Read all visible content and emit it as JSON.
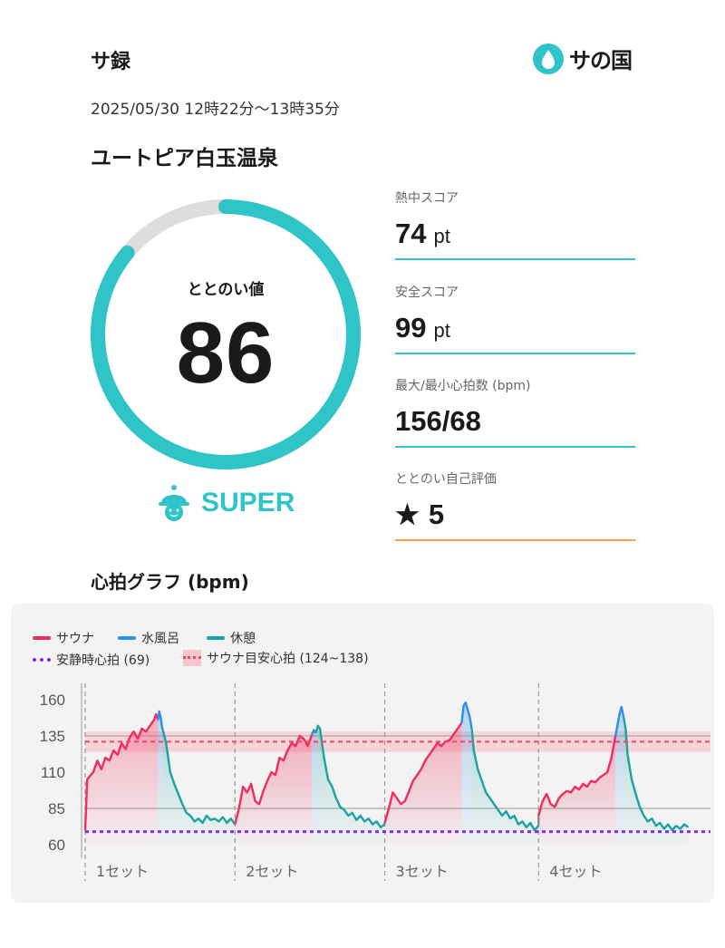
{
  "header": {
    "title": "サ録",
    "logo_text": "サの国"
  },
  "session": {
    "datetime": "2025/05/30 12時22分〜13時35分",
    "facility": "ユートピア白玉温泉"
  },
  "totonoi": {
    "label": "ととのい値",
    "value": "86",
    "progress": 0.86,
    "grade": "SUPER"
  },
  "stats": [
    {
      "label": "熱中スコア",
      "value": "74",
      "unit": "pt"
    },
    {
      "label": "安全スコア",
      "value": "99",
      "unit": "pt"
    },
    {
      "label": "最大/最小心拍数 (bpm)",
      "value": "156/68",
      "unit": ""
    },
    {
      "label": "ととのい自己評価",
      "value": "5",
      "unit": ""
    }
  ],
  "graph": {
    "title": "心拍グラフ (bpm)",
    "legend": {
      "sauna": "サウナ",
      "cold": "水風呂",
      "rest": "休憩",
      "resting_hr": "安静時心拍 (69)",
      "target": "サウナ目安心拍 (124~138)"
    }
  },
  "colors": {
    "sauna": "#ef2d5e",
    "cold": "#2b8ff0",
    "rest": "#1aa3a3",
    "transition": "#888888",
    "resting": "#8a2be2",
    "accent": "#2ec4c8",
    "self_eval": "#f4a04b"
  },
  "chart_data": {
    "type": "line",
    "ylim": [
      60,
      165
    ],
    "yticks": [
      160,
      135,
      110,
      85,
      60
    ],
    "reference_lines": {
      "resting_hr": 69,
      "target_low": 124,
      "target_high": 138,
      "target_line": 131,
      "horizontal_grid": [
        135,
        85
      ]
    },
    "sets": [
      {
        "label": "1セット",
        "sauna": [
          [
            0,
            70
          ],
          [
            0.5,
            105
          ],
          [
            2,
            110
          ],
          [
            3,
            118
          ],
          [
            4,
            112
          ],
          [
            5,
            120
          ],
          [
            6,
            118
          ],
          [
            7,
            125
          ],
          [
            8,
            122
          ],
          [
            9,
            130
          ],
          [
            10,
            126
          ],
          [
            11,
            134
          ],
          [
            12,
            138
          ],
          [
            13,
            133
          ],
          [
            14,
            140
          ],
          [
            15,
            138
          ],
          [
            16,
            142
          ],
          [
            17,
            146
          ],
          [
            17.5,
            150
          ],
          [
            18,
            146
          ]
        ],
        "cold": [
          [
            18,
            146
          ],
          [
            18.3,
            152
          ],
          [
            18.7,
            147
          ],
          [
            19,
            141
          ]
        ],
        "rest": [
          [
            19,
            141
          ],
          [
            20,
            130
          ],
          [
            21,
            110
          ],
          [
            22,
            102
          ],
          [
            23,
            95
          ],
          [
            24,
            88
          ],
          [
            25,
            82
          ],
          [
            26,
            80
          ],
          [
            27,
            76
          ],
          [
            28,
            78
          ],
          [
            29,
            75
          ],
          [
            30,
            80
          ],
          [
            31,
            77
          ],
          [
            32,
            78
          ],
          [
            33,
            76
          ],
          [
            34,
            79
          ],
          [
            35,
            75
          ],
          [
            36,
            78
          ],
          [
            37,
            74
          ]
        ]
      },
      {
        "label": "2セット",
        "sauna": [
          [
            37,
            74
          ],
          [
            38,
            85
          ],
          [
            39,
            100
          ],
          [
            40,
            96
          ],
          [
            41,
            102
          ],
          [
            42,
            90
          ],
          [
            43,
            88
          ],
          [
            44,
            97
          ],
          [
            45,
            104
          ],
          [
            46,
            110
          ],
          [
            47,
            108
          ],
          [
            48,
            120
          ],
          [
            49,
            118
          ],
          [
            50,
            125
          ],
          [
            51,
            130
          ],
          [
            52,
            128
          ],
          [
            53,
            135
          ],
          [
            54,
            133
          ],
          [
            55,
            128
          ],
          [
            56,
            136
          ]
        ],
        "cold": [
          [
            56,
            136
          ],
          [
            56.5,
            139
          ],
          [
            57,
            137
          ]
        ],
        "rest": [
          [
            57,
            137
          ],
          [
            57.5,
            142
          ],
          [
            58,
            140
          ],
          [
            59,
            120
          ],
          [
            60,
            105
          ],
          [
            61,
            100
          ],
          [
            62,
            92
          ],
          [
            63,
            86
          ],
          [
            64,
            84
          ],
          [
            65,
            80
          ],
          [
            66,
            82
          ],
          [
            67,
            77
          ],
          [
            68,
            80
          ],
          [
            69,
            76
          ],
          [
            70,
            78
          ],
          [
            71,
            74
          ],
          [
            72,
            76
          ],
          [
            73,
            72
          ],
          [
            74,
            74
          ]
        ]
      },
      {
        "label": "3セット",
        "sauna": [
          [
            74,
            75
          ],
          [
            75,
            85
          ],
          [
            76,
            96
          ],
          [
            77,
            92
          ],
          [
            78,
            88
          ],
          [
            79,
            90
          ],
          [
            80,
            97
          ],
          [
            81,
            104
          ],
          [
            82,
            108
          ],
          [
            83,
            112
          ],
          [
            84,
            118
          ],
          [
            85,
            122
          ],
          [
            86,
            126
          ],
          [
            87,
            130
          ],
          [
            88,
            128
          ],
          [
            89,
            131
          ],
          [
            90,
            132
          ],
          [
            91,
            136
          ],
          [
            92,
            140
          ],
          [
            93,
            144
          ]
        ],
        "cold": [
          [
            93,
            144
          ],
          [
            93.5,
            156
          ],
          [
            94,
            158
          ],
          [
            95,
            148
          ],
          [
            95.5,
            140
          ]
        ],
        "rest": [
          [
            95.5,
            140
          ],
          [
            96,
            125
          ],
          [
            97,
            112
          ],
          [
            98,
            104
          ],
          [
            99,
            96
          ],
          [
            100,
            92
          ],
          [
            101,
            88
          ],
          [
            102,
            84
          ],
          [
            103,
            80
          ],
          [
            104,
            83
          ],
          [
            105,
            78
          ],
          [
            106,
            80
          ],
          [
            107,
            74
          ],
          [
            108,
            76
          ],
          [
            109,
            72
          ],
          [
            110,
            75
          ],
          [
            111,
            70
          ],
          [
            112,
            73
          ]
        ]
      },
      {
        "label": "4セット",
        "sauna": [
          [
            112,
            80
          ],
          [
            113,
            90
          ],
          [
            114,
            95
          ],
          [
            115,
            88
          ],
          [
            116,
            86
          ],
          [
            117,
            92
          ],
          [
            118,
            95
          ],
          [
            119,
            97
          ],
          [
            120,
            96
          ],
          [
            121,
            100
          ],
          [
            122,
            98
          ],
          [
            123,
            102
          ],
          [
            124,
            100
          ],
          [
            125,
            104
          ],
          [
            126,
            103
          ],
          [
            127,
            106
          ],
          [
            128,
            108
          ],
          [
            129,
            110
          ],
          [
            130,
            120
          ],
          [
            131,
            135
          ]
        ],
        "cold": [
          [
            131,
            135
          ],
          [
            132,
            150
          ],
          [
            132.5,
            155
          ],
          [
            133,
            148
          ]
        ],
        "rest": [
          [
            133,
            148
          ],
          [
            133.5,
            140
          ],
          [
            134,
            122
          ],
          [
            135,
            105
          ],
          [
            136,
            95
          ],
          [
            137,
            86
          ],
          [
            138,
            80
          ],
          [
            139,
            76
          ],
          [
            140,
            78
          ],
          [
            141,
            73
          ],
          [
            142,
            75
          ],
          [
            143,
            71
          ],
          [
            144,
            74
          ],
          [
            145,
            70
          ],
          [
            146,
            73
          ],
          [
            147,
            71
          ],
          [
            148,
            74
          ],
          [
            149,
            72
          ]
        ]
      }
    ],
    "xlim": [
      0,
      150
    ],
    "set_starts": [
      0,
      37,
      74,
      112
    ]
  }
}
